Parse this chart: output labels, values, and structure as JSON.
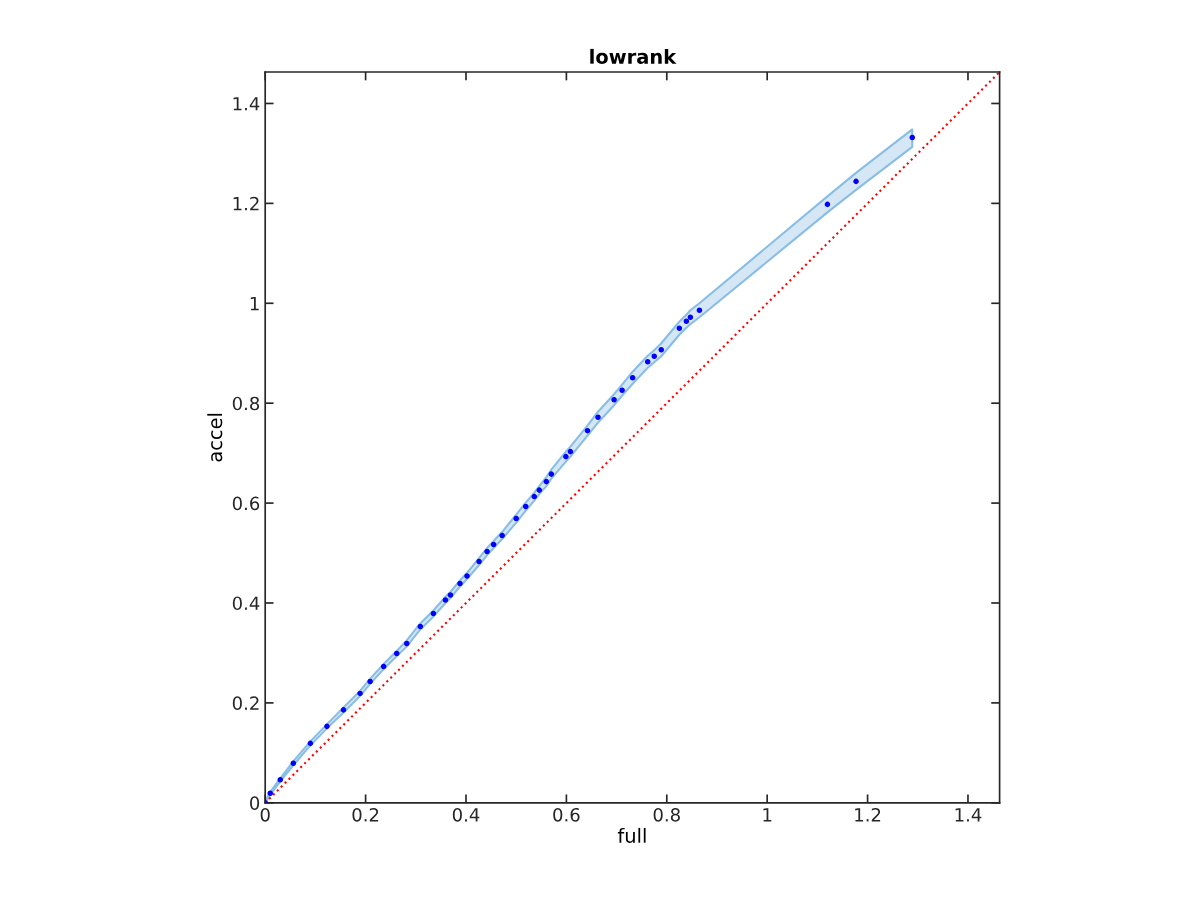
{
  "chart_data": {
    "type": "scatter",
    "title": "lowrank",
    "xlabel": "full",
    "ylabel": "accel",
    "xlim": [
      0,
      1.463
    ],
    "ylim": [
      0,
      1.463
    ],
    "xticks": [
      0,
      0.2,
      0.4,
      0.6,
      0.8,
      {
        "value": 1,
        "label": "1"
      },
      1.2,
      1.4
    ],
    "yticks": [
      0,
      0.2,
      0.4,
      0.6,
      0.8,
      {
        "value": 1,
        "label": "1"
      },
      1.2,
      1.4
    ],
    "grid": false,
    "legend": false,
    "series": [
      {
        "color": "#0000ff",
        "marker": "circle",
        "x": [
          0,
          0.01,
          0.03,
          0.056,
          0.09,
          0.123,
          0.156,
          0.189,
          0.209,
          0.236,
          0.262,
          0.282,
          0.309,
          0.335,
          0.359,
          0.369,
          0.388,
          0.402,
          0.426,
          0.442,
          0.455,
          0.472,
          0.5,
          0.519,
          0.536,
          0.546,
          0.56,
          0.57,
          0.599,
          0.608,
          0.642,
          0.663,
          0.695,
          0.711,
          0.732,
          0.762,
          0.775,
          0.789,
          0.825,
          0.839,
          0.847,
          0.865,
          1.12,
          1.177,
          1.289
        ],
        "values": [
          0,
          0.019,
          0.046,
          0.079,
          0.119,
          0.153,
          0.186,
          0.219,
          0.243,
          0.273,
          0.299,
          0.319,
          0.353,
          0.379,
          0.406,
          0.416,
          0.439,
          0.454,
          0.483,
          0.503,
          0.517,
          0.535,
          0.569,
          0.593,
          0.613,
          0.626,
          0.643,
          0.658,
          0.693,
          0.703,
          0.745,
          0.772,
          0.807,
          0.826,
          0.851,
          0.883,
          0.894,
          0.907,
          0.95,
          0.964,
          0.972,
          0.986,
          1.198,
          1.244,
          1.332
        ],
        "lower": [
          0,
          0.016,
          0.043,
          0.075,
          0.115,
          0.149,
          0.181,
          0.214,
          0.238,
          0.268,
          0.294,
          0.313,
          0.347,
          0.373,
          0.4,
          0.41,
          0.433,
          0.448,
          0.476,
          0.496,
          0.51,
          0.528,
          0.561,
          0.585,
          0.605,
          0.618,
          0.634,
          0.649,
          0.683,
          0.693,
          0.735,
          0.761,
          0.796,
          0.815,
          0.839,
          0.871,
          0.882,
          0.894,
          0.937,
          0.951,
          0.958,
          0.972,
          1.182,
          1.227,
          1.313
        ],
        "upper": [
          0.002,
          0.022,
          0.049,
          0.083,
          0.123,
          0.157,
          0.191,
          0.224,
          0.248,
          0.278,
          0.304,
          0.325,
          0.359,
          0.385,
          0.412,
          0.422,
          0.445,
          0.46,
          0.49,
          0.51,
          0.524,
          0.542,
          0.577,
          0.601,
          0.621,
          0.634,
          0.652,
          0.667,
          0.703,
          0.713,
          0.755,
          0.783,
          0.818,
          0.837,
          0.863,
          0.895,
          0.906,
          0.92,
          0.963,
          0.977,
          0.986,
          1.0,
          1.214,
          1.261,
          1.348
        ]
      },
      {
        "type": "line",
        "color": "#ff0000",
        "line_style": "dotted",
        "marker": "none",
        "x": [
          0,
          1.463
        ],
        "values": [
          0,
          1.463
        ]
      }
    ]
  }
}
